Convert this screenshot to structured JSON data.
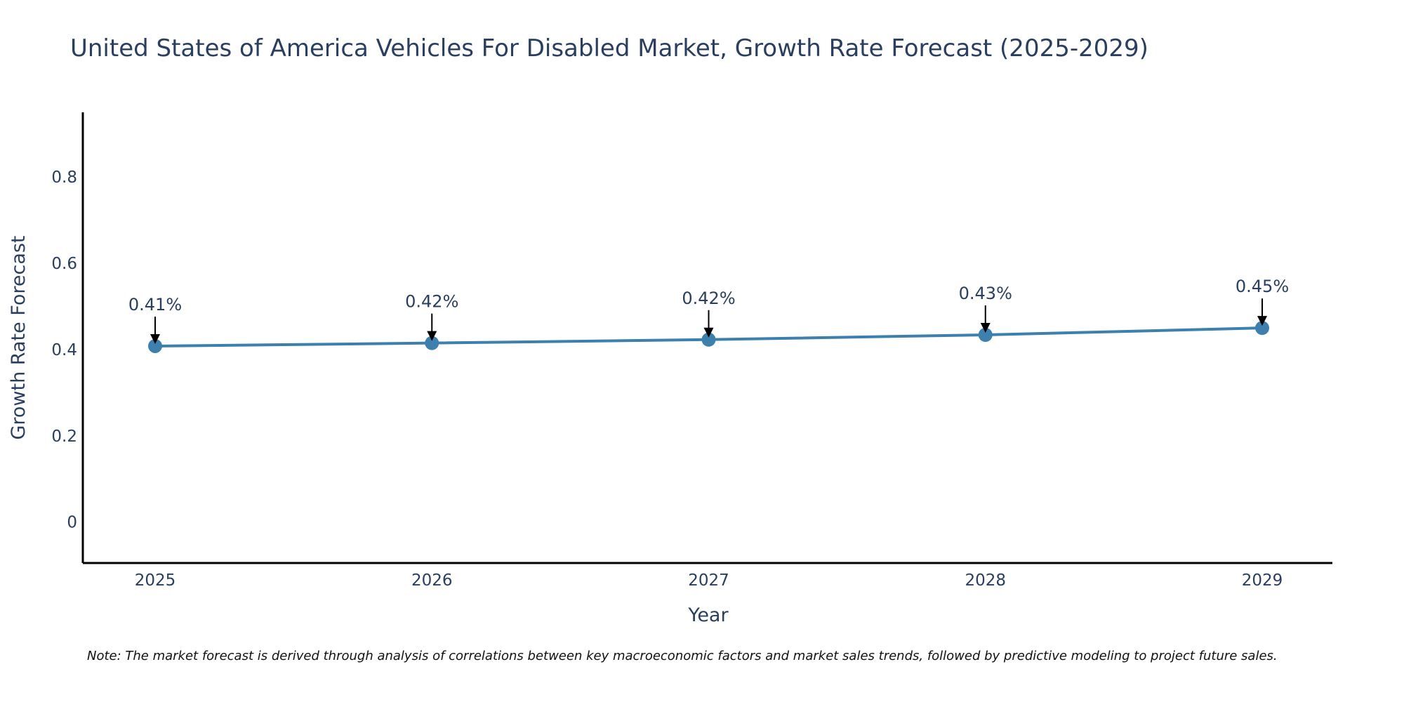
{
  "chart_data": {
    "type": "line",
    "title": "United States of America Vehicles For Disabled Market, Growth Rate Forecast (2025-2029)",
    "xlabel": "Year",
    "ylabel": "Growth Rate Forecast",
    "x": [
      "2025",
      "2026",
      "2027",
      "2028",
      "2029"
    ],
    "series": [
      {
        "name": "Growth Rate Forecast",
        "values": [
          0.408,
          0.415,
          0.423,
          0.434,
          0.45
        ],
        "labels": [
          "0.41%",
          "0.42%",
          "0.42%",
          "0.43%",
          "0.45%"
        ]
      }
    ],
    "ylim": [
      -0.095,
      0.95
    ],
    "yticks": [
      0,
      0.2,
      0.4,
      0.6,
      0.8
    ],
    "ytick_labels": [
      "0",
      "0.2",
      "0.4",
      "0.6",
      "0.8"
    ],
    "grid": false,
    "legend": "none",
    "line_color": "#3d7fad",
    "marker_color": "#3d7fad",
    "note": "Note: The market forecast is derived through analysis of correlations between key macroeconomic factors and market sales trends, followed by predictive modeling to project future sales."
  }
}
